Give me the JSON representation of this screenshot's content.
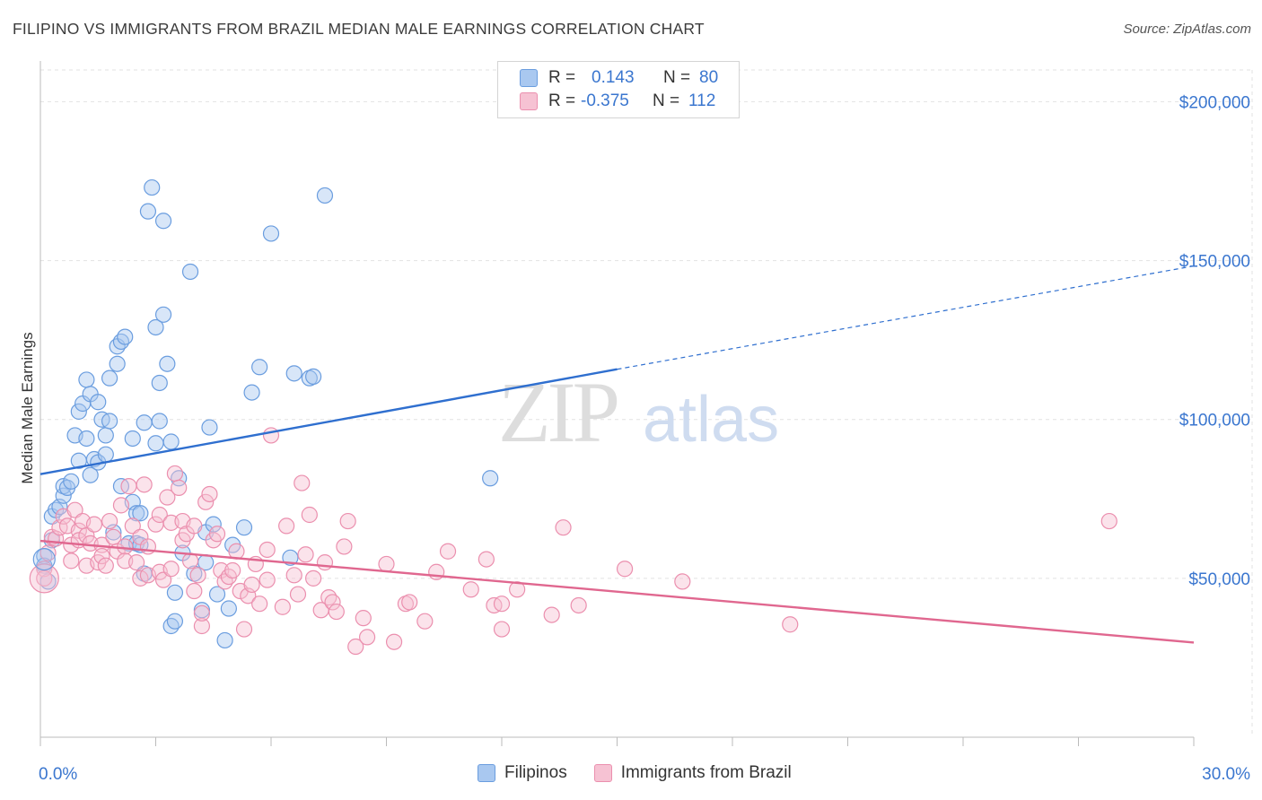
{
  "title": "FILIPINO VS IMMIGRANTS FROM BRAZIL MEDIAN MALE EARNINGS CORRELATION CHART",
  "source": "Source: ZipAtlas.com",
  "watermark": {
    "zip": "ZIP",
    "atlas": "atlas"
  },
  "colors": {
    "blue_fill": "#a9c8f0",
    "blue_stroke": "#6a9ddf",
    "blue_line": "#2f6fcf",
    "pink_fill": "#f6c2d3",
    "pink_stroke": "#eb8fae",
    "pink_line": "#e0678f",
    "axis_text": "#3a76cf",
    "grid": "#e2e2e2"
  },
  "legend": {
    "rows": [
      {
        "r_label": "R =",
        "r_value": "0.143",
        "n_label": "N =",
        "n_value": "80"
      },
      {
        "r_label": "R =",
        "r_value": "-0.375",
        "n_label": "N =",
        "n_value": "112"
      }
    ]
  },
  "bottom_legend": {
    "items": [
      "Filipinos",
      "Immigrants from Brazil"
    ]
  },
  "chart_data": {
    "type": "scatter",
    "title": "FILIPINO VS IMMIGRANTS FROM BRAZIL MEDIAN MALE EARNINGS CORRELATION CHART",
    "xlabel": "",
    "ylabel": "Median Male Earnings",
    "xlim": [
      0,
      30
    ],
    "ylim": [
      0,
      210000
    ],
    "x_tick_labels": [
      "0.0%",
      "30.0%"
    ],
    "y_ticks": [
      50000,
      100000,
      150000,
      200000
    ],
    "y_tick_labels": [
      "$50,000",
      "$100,000",
      "$150,000",
      "$200,000"
    ],
    "grid": true,
    "series": [
      {
        "name": "Filipinos",
        "color": "blue",
        "trend": {
          "x_start": 0,
          "y_start": 82800,
          "x_end": 15,
          "y_end": 115800,
          "x_dash_end": 30,
          "y_dash_end": 148300
        },
        "points": [
          [
            0.2,
            49000
          ],
          [
            0.1,
            57000
          ],
          [
            0.1,
            54000
          ],
          [
            0.3,
            62000
          ],
          [
            0.3,
            69500
          ],
          [
            0.4,
            71500
          ],
          [
            0.5,
            72500
          ],
          [
            0.6,
            76000
          ],
          [
            0.6,
            79000
          ],
          [
            0.7,
            78500
          ],
          [
            0.8,
            80500
          ],
          [
            1.0,
            87000
          ],
          [
            0.9,
            95000
          ],
          [
            1.0,
            102500
          ],
          [
            1.1,
            105000
          ],
          [
            1.2,
            94000
          ],
          [
            1.2,
            112500
          ],
          [
            1.3,
            108000
          ],
          [
            1.3,
            82500
          ],
          [
            1.4,
            87500
          ],
          [
            1.5,
            86500
          ],
          [
            1.5,
            105500
          ],
          [
            1.6,
            100000
          ],
          [
            1.7,
            95000
          ],
          [
            1.7,
            89000
          ],
          [
            1.8,
            113000
          ],
          [
            1.8,
            99500
          ],
          [
            1.9,
            64500
          ],
          [
            2.0,
            117500
          ],
          [
            2.0,
            123000
          ],
          [
            2.1,
            124500
          ],
          [
            2.2,
            126000
          ],
          [
            2.1,
            79000
          ],
          [
            2.3,
            61000
          ],
          [
            2.4,
            74000
          ],
          [
            2.4,
            94000
          ],
          [
            2.5,
            70500
          ],
          [
            2.5,
            61000
          ],
          [
            2.6,
            70500
          ],
          [
            2.6,
            60500
          ],
          [
            2.7,
            51500
          ],
          [
            2.7,
            99000
          ],
          [
            2.8,
            165500
          ],
          [
            2.9,
            173000
          ],
          [
            3.0,
            92500
          ],
          [
            3.0,
            129000
          ],
          [
            3.1,
            99500
          ],
          [
            3.1,
            111500
          ],
          [
            3.2,
            162500
          ],
          [
            3.2,
            133000
          ],
          [
            3.3,
            117500
          ],
          [
            3.4,
            93000
          ],
          [
            3.4,
            35000
          ],
          [
            3.5,
            36500
          ],
          [
            3.5,
            45500
          ],
          [
            3.6,
            81500
          ],
          [
            3.7,
            58000
          ],
          [
            3.9,
            146500
          ],
          [
            4.0,
            51500
          ],
          [
            4.2,
            40000
          ],
          [
            4.3,
            64500
          ],
          [
            4.3,
            55000
          ],
          [
            4.4,
            97500
          ],
          [
            4.5,
            67000
          ],
          [
            4.6,
            45000
          ],
          [
            4.8,
            30500
          ],
          [
            4.9,
            40500
          ],
          [
            5.0,
            60500
          ],
          [
            5.3,
            66000
          ],
          [
            5.5,
            108500
          ],
          [
            5.7,
            116500
          ],
          [
            6.0,
            158500
          ],
          [
            6.5,
            56500
          ],
          [
            6.6,
            114500
          ],
          [
            7.0,
            113000
          ],
          [
            7.1,
            113500
          ],
          [
            7.4,
            170500
          ],
          [
            11.7,
            81500
          ]
        ]
      },
      {
        "name": "Immigrants from Brazil",
        "color": "pink",
        "trend": {
          "x_start": 0,
          "y_start": 61800,
          "x_end": 30,
          "y_end": 29800
        },
        "points": [
          [
            0.1,
            53000
          ],
          [
            0.1,
            50000
          ],
          [
            0.2,
            58000
          ],
          [
            0.3,
            63000
          ],
          [
            0.4,
            62500
          ],
          [
            0.5,
            66000
          ],
          [
            0.6,
            69500
          ],
          [
            0.7,
            66500
          ],
          [
            0.8,
            60500
          ],
          [
            0.8,
            55500
          ],
          [
            0.9,
            71500
          ],
          [
            1.0,
            65000
          ],
          [
            1.0,
            62000
          ],
          [
            1.1,
            68000
          ],
          [
            1.2,
            63500
          ],
          [
            1.2,
            54000
          ],
          [
            1.3,
            61000
          ],
          [
            1.4,
            67000
          ],
          [
            1.5,
            55000
          ],
          [
            1.6,
            60500
          ],
          [
            1.6,
            57000
          ],
          [
            1.7,
            54000
          ],
          [
            1.8,
            68000
          ],
          [
            1.9,
            63000
          ],
          [
            2.0,
            58500
          ],
          [
            2.1,
            73000
          ],
          [
            2.2,
            60000
          ],
          [
            2.2,
            55500
          ],
          [
            2.3,
            79000
          ],
          [
            2.4,
            66500
          ],
          [
            2.5,
            55000
          ],
          [
            2.6,
            50000
          ],
          [
            2.6,
            63000
          ],
          [
            2.7,
            79500
          ],
          [
            2.8,
            60000
          ],
          [
            2.8,
            51000
          ],
          [
            3.0,
            67000
          ],
          [
            3.1,
            52000
          ],
          [
            3.1,
            70000
          ],
          [
            3.2,
            49500
          ],
          [
            3.3,
            75500
          ],
          [
            3.4,
            67500
          ],
          [
            3.4,
            53000
          ],
          [
            3.5,
            83000
          ],
          [
            3.6,
            78500
          ],
          [
            3.7,
            62000
          ],
          [
            3.7,
            68000
          ],
          [
            3.8,
            64000
          ],
          [
            3.9,
            55500
          ],
          [
            4.0,
            66500
          ],
          [
            4.0,
            46000
          ],
          [
            4.1,
            51000
          ],
          [
            4.2,
            35000
          ],
          [
            4.2,
            39000
          ],
          [
            4.3,
            74000
          ],
          [
            4.4,
            76500
          ],
          [
            4.5,
            62000
          ],
          [
            4.6,
            64000
          ],
          [
            4.7,
            52500
          ],
          [
            4.8,
            49000
          ],
          [
            4.9,
            50500
          ],
          [
            5.0,
            52500
          ],
          [
            5.1,
            58500
          ],
          [
            5.2,
            46000
          ],
          [
            5.3,
            34000
          ],
          [
            5.4,
            44500
          ],
          [
            5.5,
            48000
          ],
          [
            5.6,
            54500
          ],
          [
            5.7,
            42000
          ],
          [
            5.9,
            59000
          ],
          [
            5.9,
            49500
          ],
          [
            6.0,
            95000
          ],
          [
            6.3,
            41000
          ],
          [
            6.4,
            66500
          ],
          [
            6.6,
            51000
          ],
          [
            6.7,
            45000
          ],
          [
            6.8,
            80000
          ],
          [
            6.9,
            57500
          ],
          [
            7.0,
            70000
          ],
          [
            7.1,
            50000
          ],
          [
            7.3,
            40000
          ],
          [
            7.4,
            55000
          ],
          [
            7.5,
            44000
          ],
          [
            7.6,
            42500
          ],
          [
            7.7,
            39500
          ],
          [
            7.9,
            60000
          ],
          [
            8.0,
            68000
          ],
          [
            8.2,
            28500
          ],
          [
            8.4,
            37500
          ],
          [
            8.5,
            31500
          ],
          [
            9.0,
            54500
          ],
          [
            9.2,
            30000
          ],
          [
            9.5,
            42000
          ],
          [
            9.6,
            42500
          ],
          [
            10.0,
            36500
          ],
          [
            10.3,
            52000
          ],
          [
            10.6,
            58500
          ],
          [
            11.2,
            46500
          ],
          [
            11.6,
            56000
          ],
          [
            11.8,
            41500
          ],
          [
            12.0,
            34000
          ],
          [
            12.0,
            42000
          ],
          [
            12.4,
            46500
          ],
          [
            13.3,
            38500
          ],
          [
            13.6,
            66000
          ],
          [
            14.0,
            41500
          ],
          [
            15.2,
            53000
          ],
          [
            16.7,
            49000
          ],
          [
            19.5,
            35500
          ],
          [
            27.8,
            68000
          ]
        ]
      }
    ]
  }
}
